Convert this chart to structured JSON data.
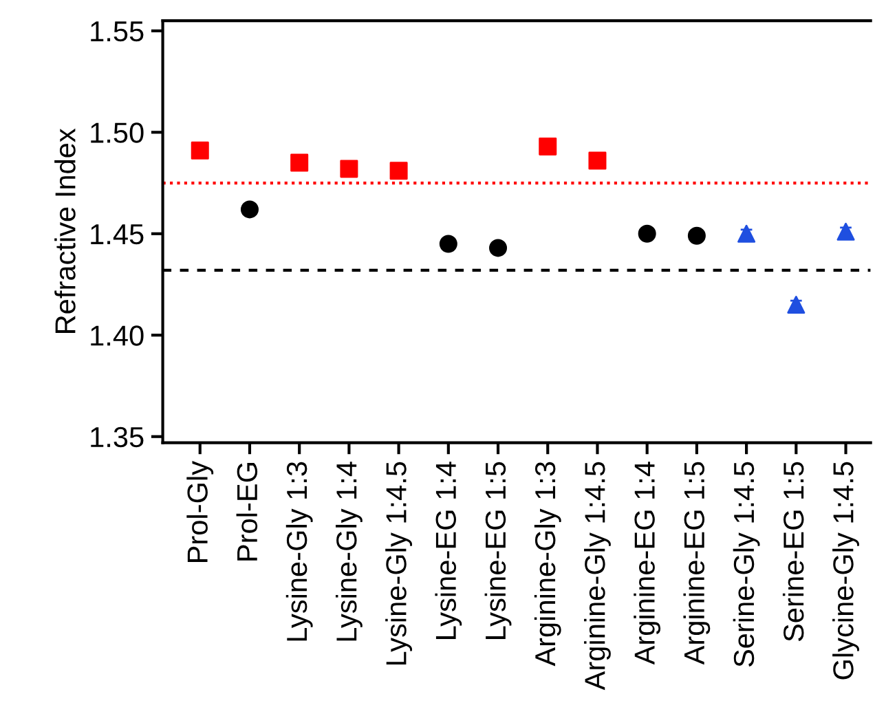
{
  "chart_data": {
    "type": "scatter",
    "ylabel": "Refractive Index",
    "categories": [
      "Prol-Gly",
      "Prol-EG",
      "Lysine-Gly 1:3",
      "Lysine-Gly 1:4",
      "Lysine-Gly 1:4.5",
      "Lysine-EG 1:4",
      "Lysine-EG 1:5",
      "Arginine-Gly 1:3",
      "Arginine-Gly 1:4.5",
      "Arginine-EG 1:4",
      "Arginine-EG 1:5",
      "Serine-Gly 1:4.5",
      "Serine-EG 1:5",
      "Glycine-Gly 1:4.5"
    ],
    "series": [
      {
        "color": "#ff0000",
        "marker": "square",
        "values": [
          1.491,
          null,
          1.485,
          1.482,
          1.481,
          null,
          null,
          1.493,
          1.486,
          null,
          null,
          null,
          null,
          null
        ],
        "errors": [
          0.002,
          null,
          0.002,
          0.002,
          0.002,
          null,
          null,
          0.002,
          0.002,
          null,
          null,
          null,
          null,
          null
        ]
      },
      {
        "color": "#000000",
        "marker": "circle",
        "values": [
          null,
          1.462,
          null,
          null,
          null,
          1.445,
          1.443,
          null,
          null,
          1.45,
          1.449,
          null,
          null,
          null
        ],
        "errors": [
          null,
          0.002,
          null,
          null,
          null,
          0.002,
          0.002,
          null,
          null,
          0.002,
          0.002,
          null,
          null,
          null
        ]
      },
      {
        "color": "#1f4fe0",
        "marker": "triangle",
        "values": [
          null,
          null,
          null,
          null,
          null,
          null,
          null,
          null,
          null,
          null,
          null,
          1.45,
          1.415,
          1.451
        ],
        "errors": [
          null,
          null,
          null,
          null,
          null,
          null,
          null,
          null,
          null,
          null,
          null,
          0.002,
          0.002,
          0.002
        ]
      }
    ],
    "ref_lines": [
      {
        "axis": "y",
        "value": 1.475,
        "color": "#ff0000",
        "line_style": "dotted"
      },
      {
        "axis": "y",
        "value": 1.432,
        "color": "#000000",
        "line_style": "dashed"
      }
    ],
    "ylim": [
      1.347,
      1.555
    ],
    "yticks": [
      {
        "value": 1.35,
        "label": "1.35"
      },
      {
        "value": 1.4,
        "label": "1.40"
      },
      {
        "value": 1.45,
        "label": "1.45"
      },
      {
        "value": 1.5,
        "label": "1.50"
      },
      {
        "value": 1.55,
        "label": "1.55"
      }
    ],
    "grid": false
  }
}
